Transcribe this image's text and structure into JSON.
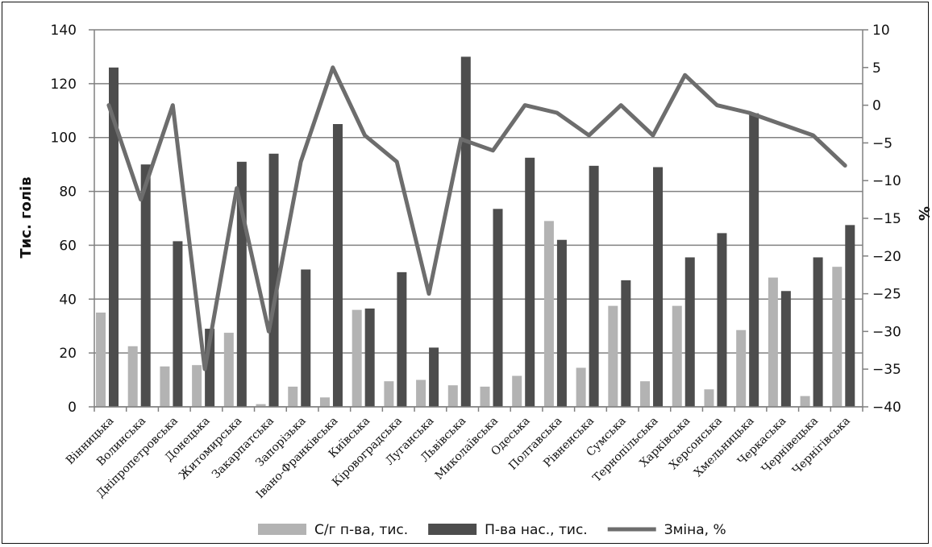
{
  "chart_data": {
    "type": "bar",
    "title": "",
    "categories": [
      "Вінницька",
      "Волинська",
      "Дніпропетровська",
      "Донецька",
      "Житомирська",
      "Закарпатська",
      "Запорізька",
      "Івано-Франківська",
      "Київська",
      "Кіровоградська",
      "Луганська",
      "Львівська",
      "Миколаївська",
      "Одеська",
      "Полтавська",
      "Рівненська",
      "Сумська",
      "Тернопільська",
      "Харківська",
      "Херсонська",
      "Хмельницька",
      "Черкаська",
      "Чернівецька",
      "Чернігівська"
    ],
    "series": [
      {
        "name": "С/г п-ва, тис.",
        "type": "bar",
        "axis": "left",
        "color": "#b3b3b3",
        "values": [
          35,
          22.5,
          15,
          15.5,
          27.5,
          1,
          7.5,
          3.5,
          36,
          9.5,
          10,
          8,
          7.5,
          11.5,
          69,
          14.5,
          37.5,
          9.5,
          37.5,
          6.5,
          28.5,
          48,
          4,
          52
        ]
      },
      {
        "name": "П-ва нас., тис.",
        "type": "bar",
        "axis": "left",
        "color": "#4d4d4d",
        "values": [
          126,
          90,
          61.5,
          29,
          91,
          94,
          51,
          105,
          36.5,
          50,
          22,
          130,
          73.5,
          92.5,
          62,
          89.5,
          47,
          89,
          55.5,
          64.5,
          109,
          43,
          55.5,
          67.5
        ]
      },
      {
        "name": "Зміна, %",
        "type": "line",
        "axis": "right",
        "color": "#6d6d6d",
        "values": [
          0,
          -12.5,
          0,
          -35,
          -11,
          -30,
          -7.5,
          5,
          -4,
          -7.5,
          -25,
          -4.5,
          -6,
          0,
          -1,
          -4,
          0,
          -4,
          4,
          0,
          -1,
          -2.5,
          -4,
          -8
        ]
      }
    ],
    "ylabel": "Тис. голів",
    "ylabel_right": "%",
    "ylim": [
      0,
      140
    ],
    "yticks": [
      0,
      20,
      40,
      60,
      80,
      100,
      120,
      140
    ],
    "ylim_right": [
      -40,
      10
    ],
    "yticks_right": [
      10,
      5,
      0,
      -5,
      -10,
      -15,
      -20,
      -25,
      -30,
      -35,
      -40
    ],
    "yticklabels_right": [
      "10",
      "5",
      "0",
      "−5",
      "−10",
      "−15",
      "−20",
      "−25",
      "−30",
      "−35",
      "−40"
    ],
    "grid": true,
    "legend_position": "bottom"
  }
}
